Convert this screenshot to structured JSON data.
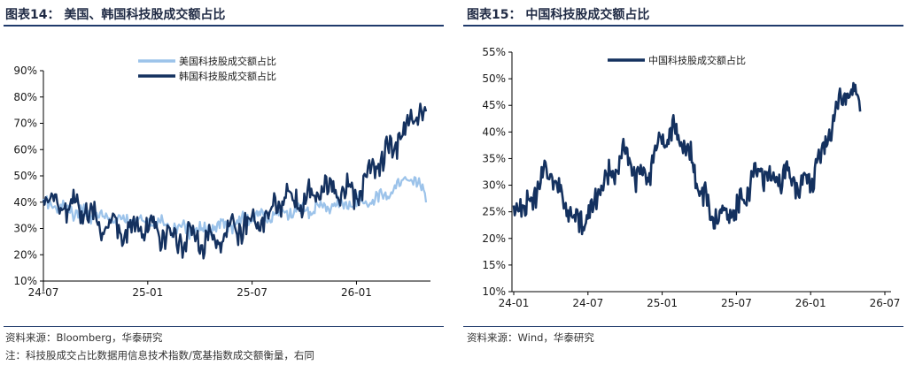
{
  "left": {
    "title": "图表14：  美国、韩国科技股成交额占比",
    "source": "资料来源：Bloomberg，华泰研究",
    "note": "注：科技股成交占比数据用信息技术指数/宽基指数成交额衡量，右同",
    "colors": {
      "us": "#9cc3ea",
      "kr": "#14315f"
    },
    "chart_data": {
      "type": "line",
      "x_ticks": [
        "24-07",
        "25-01",
        "25-07",
        "26-01"
      ],
      "y_ticks": [
        "10%",
        "20%",
        "30%",
        "40%",
        "50%",
        "60%",
        "70%",
        "80%",
        "90%"
      ],
      "ylim": [
        10,
        90
      ],
      "x_domain": [
        "2024-07",
        "2026-05"
      ],
      "legend_position": "top-center",
      "series": [
        {
          "name": "美国科技股成交额占比",
          "points": [
            [
              "2024-07",
              40
            ],
            [
              "2024-08",
              38
            ],
            [
              "2024-09",
              36
            ],
            [
              "2024-10",
              35
            ],
            [
              "2024-11",
              34
            ],
            [
              "2024-12",
              33
            ],
            [
              "2025-01",
              32
            ],
            [
              "2025-02",
              31
            ],
            [
              "2025-03",
              30
            ],
            [
              "2025-04",
              29
            ],
            [
              "2025-05",
              31
            ],
            [
              "2025-06",
              32
            ],
            [
              "2025-07",
              34
            ],
            [
              "2025-08",
              35
            ],
            [
              "2025-09",
              36
            ],
            [
              "2025-10",
              37
            ],
            [
              "2025-11",
              38
            ],
            [
              "2025-12",
              39
            ],
            [
              "2026-01",
              40
            ],
            [
              "2026-02",
              40
            ],
            [
              "2026-03",
              44
            ],
            [
              "2026-04",
              50
            ],
            [
              "2026-05",
              43
            ]
          ]
        },
        {
          "name": "韩国科技股成交额占比",
          "points": [
            [
              "2024-07",
              44
            ],
            [
              "2024-08",
              38
            ],
            [
              "2024-09",
              37
            ],
            [
              "2024-10",
              34
            ],
            [
              "2024-11",
              31
            ],
            [
              "2024-12",
              29
            ],
            [
              "2025-01",
              31
            ],
            [
              "2025-02",
              28
            ],
            [
              "2025-03",
              26
            ],
            [
              "2025-04",
              25
            ],
            [
              "2025-05",
              27
            ],
            [
              "2025-06",
              30
            ],
            [
              "2025-07",
              32
            ],
            [
              "2025-08",
              36
            ],
            [
              "2025-09",
              42
            ],
            [
              "2025-10",
              41
            ],
            [
              "2025-11",
              45
            ],
            [
              "2025-12",
              44
            ],
            [
              "2026-01",
              43
            ],
            [
              "2026-02",
              52
            ],
            [
              "2026-03",
              60
            ],
            [
              "2026-04",
              70
            ],
            [
              "2026-05",
              76
            ]
          ]
        }
      ]
    }
  },
  "right": {
    "title": "图表15：  中国科技股成交额占比",
    "source": "资料来源：Wind，华泰研究",
    "colors": {
      "cn": "#14315f"
    },
    "chart_data": {
      "type": "line",
      "x_ticks": [
        "24-01",
        "24-07",
        "25-01",
        "25-07",
        "26-01",
        "26-07"
      ],
      "y_ticks": [
        "10%",
        "15%",
        "20%",
        "25%",
        "30%",
        "35%",
        "40%",
        "45%",
        "50%",
        "55%"
      ],
      "ylim": [
        10,
        55
      ],
      "x_domain": [
        "2024-01",
        "2026-07"
      ],
      "legend_position": "top-center",
      "series": [
        {
          "name": "中国科技股成交额占比",
          "points": [
            [
              "2024-01",
              27
            ],
            [
              "2024-02",
              25
            ],
            [
              "2024-03",
              30
            ],
            [
              "2024-04",
              33
            ],
            [
              "2024-05",
              27
            ],
            [
              "2024-06",
              23
            ],
            [
              "2024-07",
              24
            ],
            [
              "2024-08",
              29
            ],
            [
              "2024-09",
              32
            ],
            [
              "2024-10",
              36
            ],
            [
              "2024-11",
              31
            ],
            [
              "2024-12",
              33
            ],
            [
              "2025-01",
              39
            ],
            [
              "2025-02",
              40
            ],
            [
              "2025-03",
              37
            ],
            [
              "2025-04",
              29
            ],
            [
              "2025-05",
              25
            ],
            [
              "2025-06",
              24
            ],
            [
              "2025-07",
              25
            ],
            [
              "2025-08",
              30
            ],
            [
              "2025-09",
              33
            ],
            [
              "2025-10",
              31
            ],
            [
              "2025-11",
              32
            ],
            [
              "2025-12",
              30
            ],
            [
              "2026-01",
              31
            ],
            [
              "2026-02",
              36
            ],
            [
              "2026-03",
              44
            ],
            [
              "2026-04",
              48
            ],
            [
              "2026-05",
              46
            ]
          ]
        }
      ]
    }
  }
}
